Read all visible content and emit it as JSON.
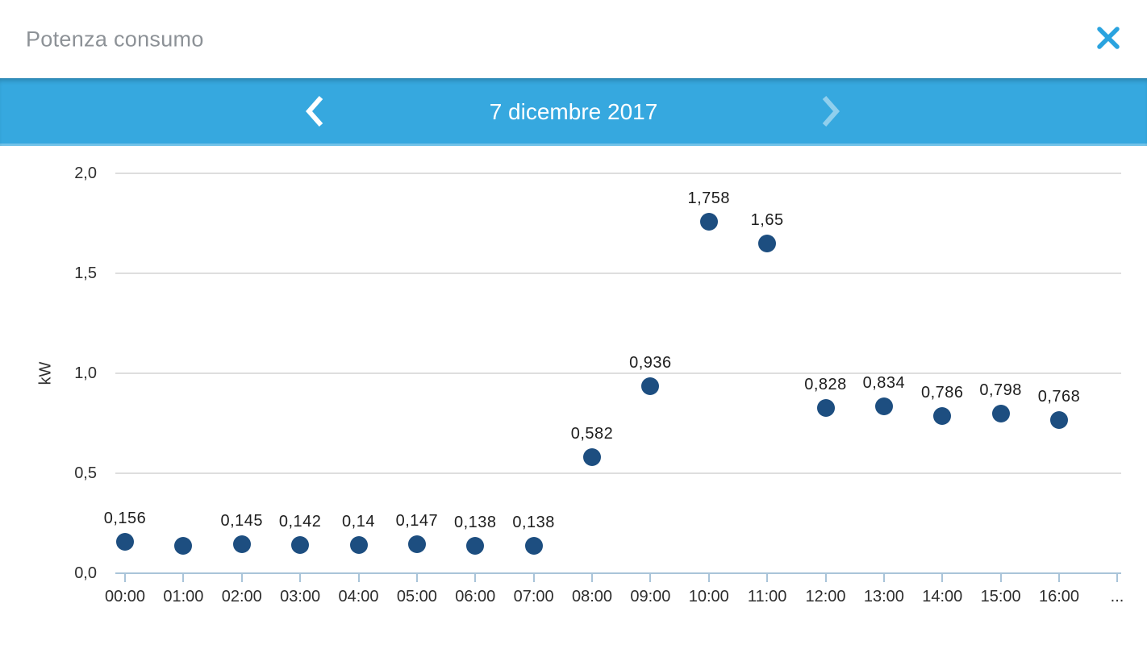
{
  "window": {
    "title": "Potenza consumo",
    "icons": {
      "close": "✕",
      "prev_chevron": "❮",
      "next_chevron": "❯"
    }
  },
  "date_nav": {
    "date_label": "7 dicembre 2017"
  },
  "colors": {
    "accent_blue": "#36a8df",
    "close_icon_blue": "#2aa3df",
    "point_navy": "#1d4e80",
    "gridline_gray": "#dedede",
    "axis_steel_blue": "#a9c4d9"
  },
  "chart_data": {
    "type": "scatter",
    "title": "Potenza consumo",
    "x": [
      "00:00",
      "01:00",
      "02:00",
      "03:00",
      "04:00",
      "05:00",
      "06:00",
      "07:00",
      "08:00",
      "09:00",
      "10:00",
      "11:00",
      "12:00",
      "13:00",
      "14:00",
      "15:00",
      "16:00"
    ],
    "values": [
      0.156,
      0.137,
      0.145,
      0.142,
      0.14,
      0.147,
      0.138,
      0.138,
      0.582,
      0.936,
      1.758,
      1.65,
      0.828,
      0.834,
      0.786,
      0.798,
      0.768
    ],
    "point_labels": [
      "0,156",
      "",
      "0,145",
      "0,142",
      "0,14",
      "0,147",
      "0,138",
      "0,138",
      "0,582",
      "0,936",
      "1,758",
      "1,65",
      "0,828",
      "0,834",
      "0,786",
      "0,798",
      "0,768"
    ],
    "overflow_label": "...",
    "xlabel": "",
    "ylabel": "kW",
    "yticks": [
      "0,0",
      "0,5",
      "1,0",
      "1,5",
      "2,0"
    ],
    "ytick_values": [
      0,
      0.5,
      1.0,
      1.5,
      2.0
    ],
    "ylim": [
      0,
      2.1
    ],
    "grid": true,
    "legend": false,
    "unit": "kW"
  }
}
